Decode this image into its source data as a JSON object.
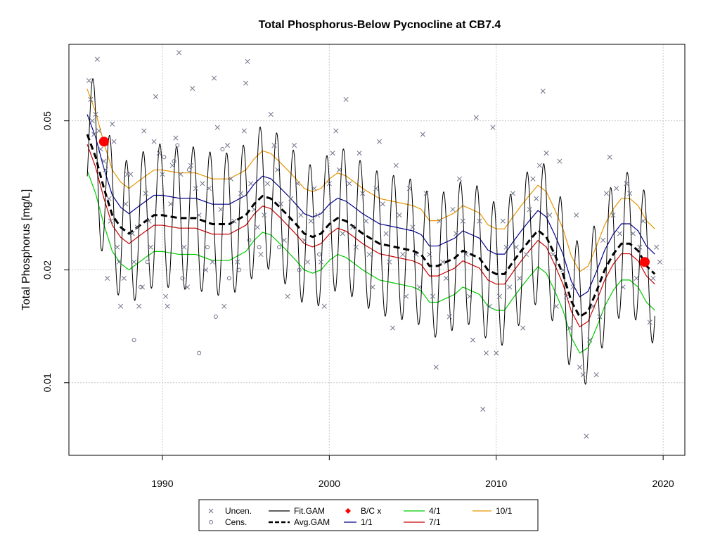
{
  "chart_data": {
    "type": "scatter",
    "title": "Total Phosphorus-Below Pycnocline at CB7.4",
    "xlabel": "",
    "ylabel": "Total Phosphorus [mg/L]",
    "xlim": [
      1984.4,
      2021.3
    ],
    "ylim": [
      0.0064,
      0.08
    ],
    "y_scale": "log",
    "x_ticks": [
      1990,
      2000,
      2010,
      2020
    ],
    "x_tick_labels": [
      "1990",
      "2000",
      "2010",
      "2020"
    ],
    "y_ticks": [
      0.01,
      0.02,
      0.05
    ],
    "y_tick_labels": [
      "0.01",
      "0.02",
      "0.05"
    ],
    "grid": true,
    "legend_position": "bottom",
    "legend": [
      {
        "label": "Uncen.",
        "symbol": "x",
        "color": "#6e7388"
      },
      {
        "label": "Cens.",
        "symbol": "circle",
        "color": "#6e7388"
      },
      {
        "label": "Fit.GAM",
        "symbol": "line",
        "color": "#000000"
      },
      {
        "label": "Avg.GAM",
        "symbol": "dashed",
        "color": "#000000"
      },
      {
        "label": "B/C x",
        "symbol": "diamond",
        "color": "#ff0000"
      },
      {
        "label": "1/1",
        "symbol": "line",
        "color": "#00008b"
      },
      {
        "label": "4/1",
        "symbol": "line",
        "color": "#00cc00"
      },
      {
        "label": "7/1",
        "symbol": "line",
        "color": "#cc0000"
      },
      {
        "label": "10/1",
        "symbol": "line",
        "color": "#e69500"
      }
    ],
    "colors": {
      "points": "#6e7388",
      "fit_gam": "#000000",
      "avg_gam": "#000000",
      "baseline_current": "#ff0000",
      "jan1": "#00008b",
      "apr1": "#00cc00",
      "jul1": "#cc0000",
      "oct1": "#e69500"
    },
    "avg_gam": {
      "x": [
        1985.5,
        1986.0,
        1986.5,
        1987.0,
        1987.5,
        1988.0,
        1988.5,
        1989.0,
        1989.5,
        1990.0,
        1991.0,
        1992.0,
        1993.0,
        1994.0,
        1995.0,
        1995.5,
        1996.0,
        1996.5,
        1997.0,
        1997.5,
        1998.0,
        1998.5,
        1999.0,
        1999.5,
        2000.0,
        2000.5,
        2001.0,
        2001.5,
        2002.0,
        2003.0,
        2004.0,
        2005.0,
        2005.5,
        2006.0,
        2006.5,
        2007.0,
        2007.5,
        2008.0,
        2008.5,
        2009.0,
        2009.5,
        2010.0,
        2010.5,
        2011.0,
        2011.5,
        2012.0,
        2012.5,
        2013.0,
        2013.5,
        2014.0,
        2014.5,
        2015.0,
        2015.5,
        2016.0,
        2016.5,
        2017.0,
        2017.5,
        2018.0,
        2018.5,
        2019.0,
        2019.5
      ],
      "y": [
        0.046,
        0.04,
        0.033,
        0.028,
        0.026,
        0.025,
        0.026,
        0.027,
        0.028,
        0.028,
        0.0275,
        0.0275,
        0.0265,
        0.0265,
        0.028,
        0.03,
        0.0315,
        0.031,
        0.0295,
        0.028,
        0.0265,
        0.025,
        0.0245,
        0.025,
        0.0265,
        0.0275,
        0.027,
        0.026,
        0.025,
        0.0235,
        0.023,
        0.0225,
        0.022,
        0.0205,
        0.0205,
        0.021,
        0.0215,
        0.0225,
        0.022,
        0.0215,
        0.02,
        0.0195,
        0.0195,
        0.021,
        0.0225,
        0.024,
        0.0255,
        0.0245,
        0.022,
        0.0195,
        0.0165,
        0.015,
        0.0155,
        0.0175,
        0.02,
        0.022,
        0.0235,
        0.0235,
        0.0225,
        0.0205,
        0.0195
      ]
    },
    "seasonal_amplitude_ratio": 1.55,
    "season_offsets": {
      "jan1": 1.13,
      "apr1": 0.8,
      "jul1": 0.94,
      "oct1": 1.32
    },
    "baseline_current_points": [
      {
        "x": 1986.5,
        "y": 0.044
      },
      {
        "x": 2018.9,
        "y": 0.021
      }
    ],
    "uncensored_points": [
      [
        1985.6,
        0.064
      ],
      [
        1985.7,
        0.057
      ],
      [
        1985.8,
        0.05
      ],
      [
        1985.9,
        0.046
      ],
      [
        1986.0,
        0.052
      ],
      [
        1986.1,
        0.073
      ],
      [
        1986.2,
        0.047
      ],
      [
        1986.3,
        0.042
      ],
      [
        1986.5,
        0.039
      ],
      [
        1986.6,
        0.037
      ],
      [
        1986.7,
        0.019
      ],
      [
        1986.8,
        0.031
      ],
      [
        1986.9,
        0.027
      ],
      [
        1987.0,
        0.049
      ],
      [
        1987.1,
        0.044
      ],
      [
        1987.3,
        0.023
      ],
      [
        1987.4,
        0.021
      ],
      [
        1987.5,
        0.016
      ],
      [
        1987.7,
        0.019
      ],
      [
        1987.8,
        0.03
      ],
      [
        1987.9,
        0.036
      ],
      [
        1988.1,
        0.036
      ],
      [
        1988.2,
        0.025
      ],
      [
        1988.3,
        0.021
      ],
      [
        1988.5,
        0.026
      ],
      [
        1988.6,
        0.016
      ],
      [
        1988.8,
        0.018
      ],
      [
        1988.9,
        0.047
      ],
      [
        1989.0,
        0.032
      ],
      [
        1989.2,
        0.027
      ],
      [
        1989.3,
        0.023
      ],
      [
        1989.5,
        0.044
      ],
      [
        1989.6,
        0.058
      ],
      [
        1989.8,
        0.041
      ],
      [
        1990.0,
        0.036
      ],
      [
        1990.2,
        0.017
      ],
      [
        1990.3,
        0.016
      ],
      [
        1990.5,
        0.03
      ],
      [
        1990.6,
        0.038
      ],
      [
        1990.8,
        0.045
      ],
      [
        1991.0,
        0.076
      ],
      [
        1991.1,
        0.036
      ],
      [
        1991.3,
        0.023
      ],
      [
        1991.5,
        0.018
      ],
      [
        1991.7,
        0.038
      ],
      [
        1991.8,
        0.061
      ],
      [
        1992.0,
        0.033
      ],
      [
        1992.2,
        0.028
      ],
      [
        1992.4,
        0.034
      ],
      [
        1992.6,
        0.02
      ],
      [
        1992.8,
        0.033
      ],
      [
        1993.0,
        0.021
      ],
      [
        1993.1,
        0.065
      ],
      [
        1993.3,
        0.048
      ],
      [
        1993.5,
        0.029
      ],
      [
        1993.7,
        0.016
      ],
      [
        1993.9,
        0.043
      ],
      [
        1994.1,
        0.035
      ],
      [
        1994.3,
        0.027
      ],
      [
        1994.5,
        0.021
      ],
      [
        1994.7,
        0.032
      ],
      [
        1994.9,
        0.047
      ],
      [
        1995.0,
        0.063
      ],
      [
        1995.1,
        0.072
      ],
      [
        1995.3,
        0.034
      ],
      [
        1995.5,
        0.029
      ],
      [
        1995.7,
        0.026
      ],
      [
        1995.9,
        0.022
      ],
      [
        1996.1,
        0.028
      ],
      [
        1996.3,
        0.034
      ],
      [
        1996.5,
        0.052
      ],
      [
        1996.7,
        0.043
      ],
      [
        1996.9,
        0.037
      ],
      [
        1997.1,
        0.03
      ],
      [
        1997.3,
        0.024
      ],
      [
        1997.5,
        0.017
      ],
      [
        1997.7,
        0.031
      ],
      [
        1997.9,
        0.043
      ],
      [
        1998.1,
        0.034
      ],
      [
        1998.3,
        0.028
      ],
      [
        1998.5,
        0.024
      ],
      [
        1998.7,
        0.021
      ],
      [
        1998.9,
        0.027
      ],
      [
        1999.1,
        0.033
      ],
      [
        1999.3,
        0.028
      ],
      [
        1999.5,
        0.021
      ],
      [
        1999.7,
        0.016
      ],
      [
        2000.0,
        0.034
      ],
      [
        2000.2,
        0.041
      ],
      [
        2000.4,
        0.047
      ],
      [
        2000.6,
        0.037
      ],
      [
        2000.8,
        0.025
      ],
      [
        2001.0,
        0.057
      ],
      [
        2001.2,
        0.034
      ],
      [
        2001.4,
        0.026
      ],
      [
        2001.6,
        0.023
      ],
      [
        2001.8,
        0.041
      ],
      [
        2002.0,
        0.032
      ],
      [
        2002.2,
        0.027
      ],
      [
        2002.4,
        0.022
      ],
      [
        2002.6,
        0.018
      ],
      [
        2002.8,
        0.033
      ],
      [
        2003.0,
        0.044
      ],
      [
        2003.2,
        0.03
      ],
      [
        2003.4,
        0.025
      ],
      [
        2003.6,
        0.021
      ],
      [
        2003.8,
        0.014
      ],
      [
        2004.0,
        0.038
      ],
      [
        2004.2,
        0.028
      ],
      [
        2004.4,
        0.022
      ],
      [
        2004.6,
        0.017
      ],
      [
        2004.8,
        0.033
      ],
      [
        2005.0,
        0.026
      ],
      [
        2005.2,
        0.022
      ],
      [
        2005.4,
        0.018
      ],
      [
        2005.6,
        0.046
      ],
      [
        2005.8,
        0.032
      ],
      [
        2006.0,
        0.022
      ],
      [
        2006.2,
        0.017
      ],
      [
        2006.4,
        0.011
      ],
      [
        2006.6,
        0.027
      ],
      [
        2006.8,
        0.021
      ],
      [
        2007.0,
        0.019
      ],
      [
        2007.2,
        0.015
      ],
      [
        2007.4,
        0.029
      ],
      [
        2007.6,
        0.025
      ],
      [
        2007.8,
        0.035
      ],
      [
        2008.0,
        0.027
      ],
      [
        2008.2,
        0.022
      ],
      [
        2008.4,
        0.017
      ],
      [
        2008.6,
        0.013
      ],
      [
        2008.8,
        0.051
      ],
      [
        2009.0,
        0.027
      ],
      [
        2009.2,
        0.0085
      ],
      [
        2009.4,
        0.012
      ],
      [
        2009.6,
        0.016
      ],
      [
        2009.8,
        0.048
      ],
      [
        2010.0,
        0.012
      ],
      [
        2010.2,
        0.017
      ],
      [
        2010.4,
        0.027
      ],
      [
        2010.6,
        0.023
      ],
      [
        2010.8,
        0.018
      ],
      [
        2011.0,
        0.032
      ],
      [
        2011.2,
        0.023
      ],
      [
        2011.4,
        0.019
      ],
      [
        2011.6,
        0.014
      ],
      [
        2011.8,
        0.022
      ],
      [
        2012.0,
        0.029
      ],
      [
        2012.2,
        0.035
      ],
      [
        2012.4,
        0.031
      ],
      [
        2012.6,
        0.038
      ],
      [
        2012.8,
        0.06
      ],
      [
        2013.0,
        0.041
      ],
      [
        2013.2,
        0.028
      ],
      [
        2013.4,
        0.022
      ],
      [
        2013.6,
        0.016
      ],
      [
        2013.8,
        0.039
      ],
      [
        2014.0,
        0.02
      ],
      [
        2014.2,
        0.017
      ],
      [
        2014.4,
        0.014
      ],
      [
        2014.6,
        0.018
      ],
      [
        2014.8,
        0.028
      ],
      [
        2015.0,
        0.011
      ],
      [
        2015.2,
        0.0105
      ],
      [
        2015.4,
        0.0072
      ],
      [
        2015.6,
        0.013
      ],
      [
        2015.8,
        0.016
      ],
      [
        2016.0,
        0.0105
      ],
      [
        2016.2,
        0.015
      ],
      [
        2016.4,
        0.024
      ],
      [
        2016.6,
        0.032
      ],
      [
        2016.8,
        0.04
      ],
      [
        2017.0,
        0.028
      ],
      [
        2017.2,
        0.033
      ],
      [
        2017.4,
        0.025
      ],
      [
        2017.6,
        0.018
      ],
      [
        2017.8,
        0.034
      ],
      [
        2018.0,
        0.032
      ],
      [
        2018.2,
        0.025
      ],
      [
        2018.4,
        0.019
      ],
      [
        2018.6,
        0.023
      ],
      [
        2018.8,
        0.027
      ],
      [
        2019.0,
        0.021
      ],
      [
        2019.2,
        0.0145
      ],
      [
        2019.4,
        0.019
      ],
      [
        2019.6,
        0.023
      ],
      [
        2019.8,
        0.021
      ]
    ],
    "censored_points": [
      [
        1988.3,
        0.013
      ],
      [
        1988.7,
        0.018
      ],
      [
        1989.1,
        0.021
      ],
      [
        1990.1,
        0.04
      ],
      [
        1990.7,
        0.039
      ],
      [
        1990.9,
        0.043
      ],
      [
        1991.2,
        0.019
      ],
      [
        1991.6,
        0.037
      ],
      [
        1992.2,
        0.012
      ],
      [
        1992.7,
        0.023
      ],
      [
        1993.2,
        0.015
      ],
      [
        1993.6,
        0.042
      ],
      [
        1994.0,
        0.019
      ],
      [
        1994.6,
        0.02
      ],
      [
        1995.2,
        0.024
      ],
      [
        1995.8,
        0.023
      ],
      [
        1997.0,
        0.023
      ],
      [
        1998.2,
        0.02
      ],
      [
        1999.4,
        0.022
      ]
    ]
  }
}
